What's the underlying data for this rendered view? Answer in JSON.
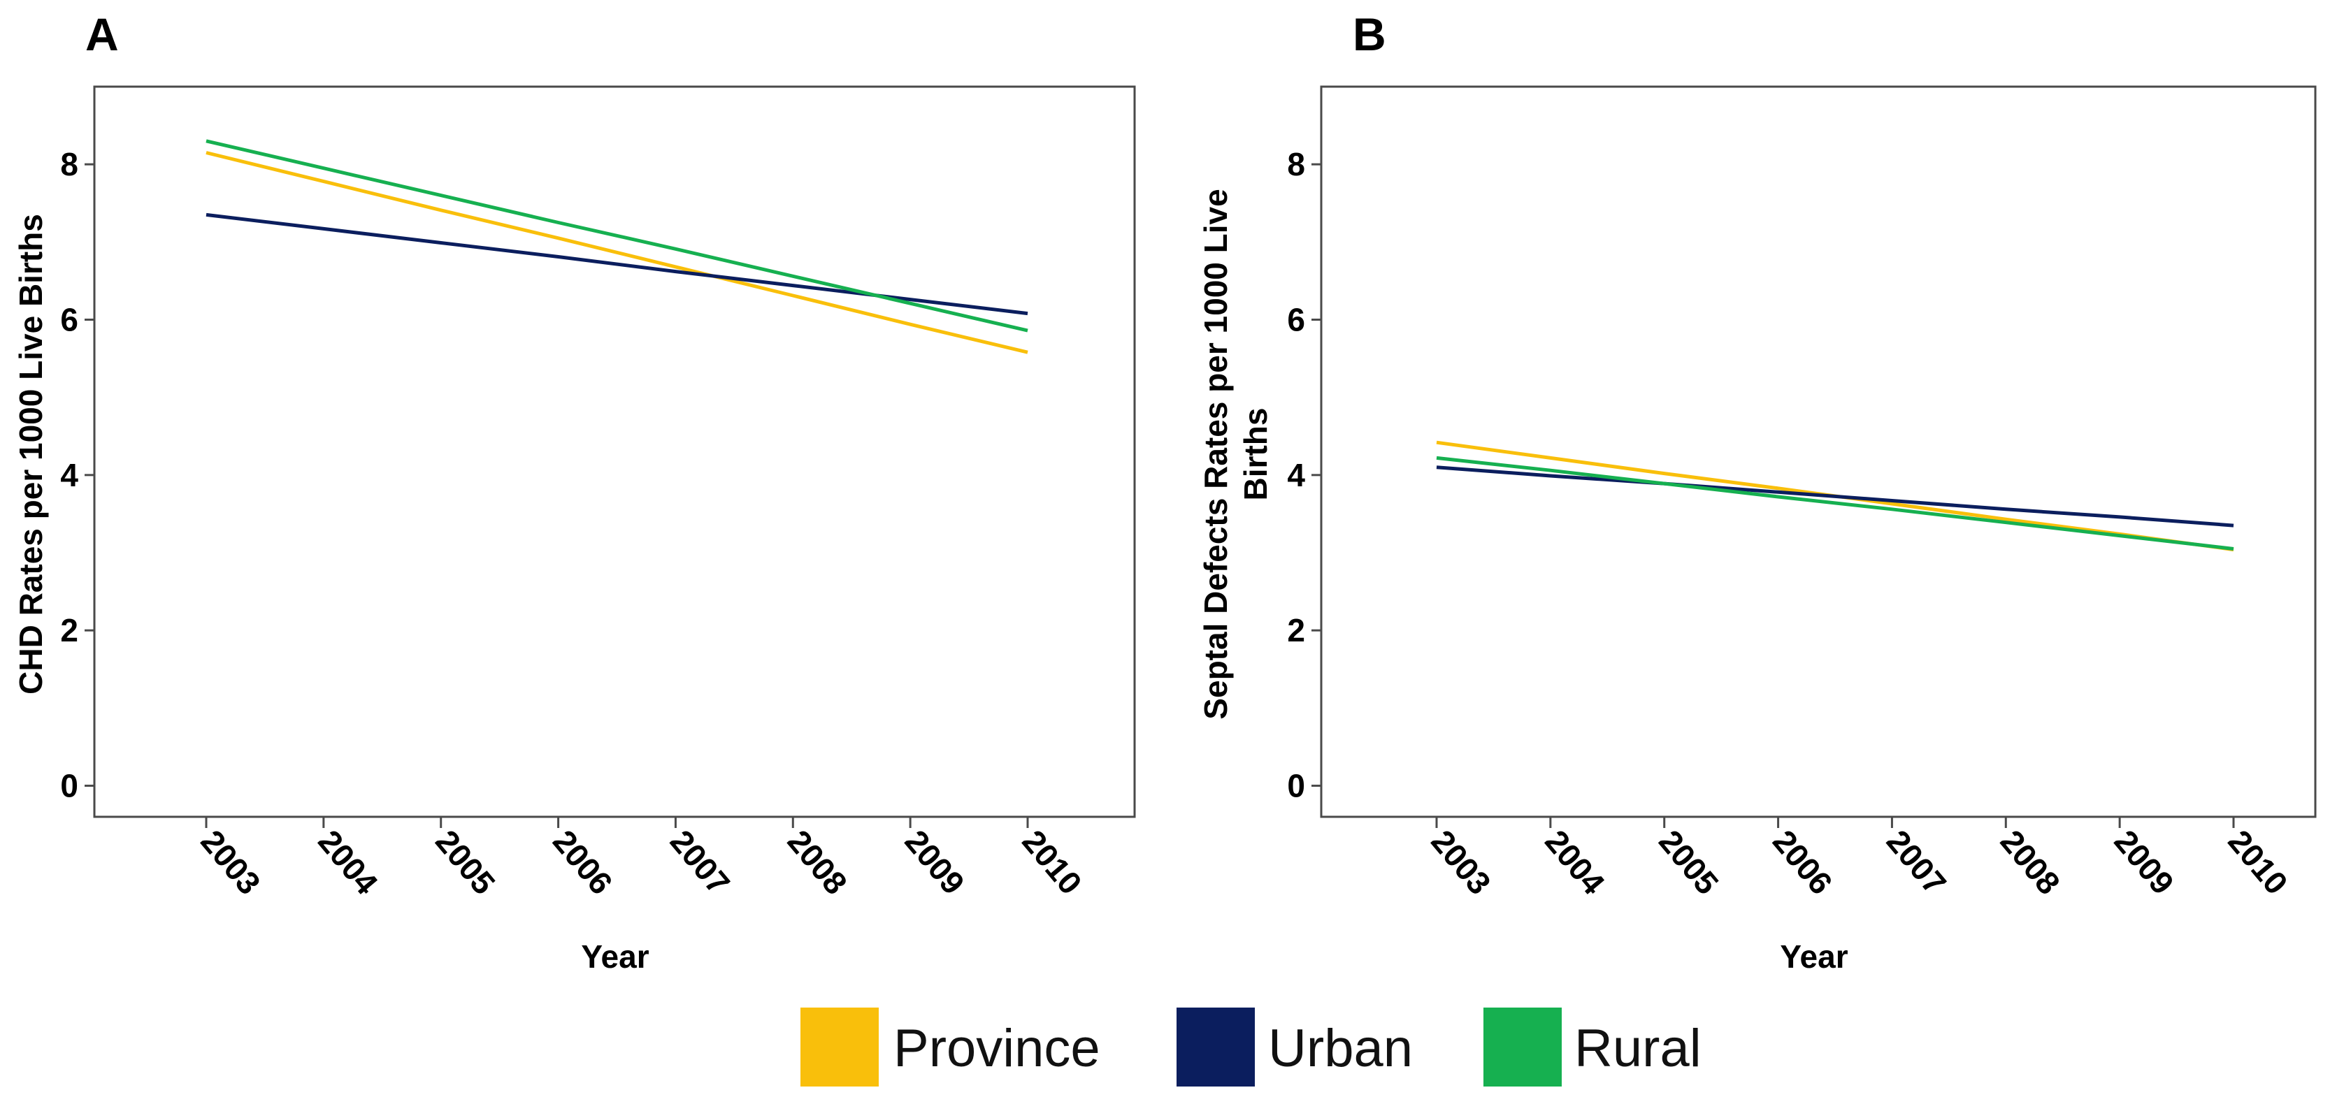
{
  "colors": {
    "province": "#F9BF0B",
    "urban": "#0B1E5E",
    "rural": "#16B050",
    "axis": "#4a4a4a"
  },
  "legend": {
    "items": [
      {
        "key": "province",
        "label": "Province"
      },
      {
        "key": "urban",
        "label": "Urban"
      },
      {
        "key": "rural",
        "label": "Rural"
      }
    ]
  },
  "chart_data": [
    {
      "type": "line",
      "panel": "A",
      "title": "",
      "xlabel": "Year",
      "ylabel": "CHD Rates per 1000 Live Births",
      "categories": [
        "2003",
        "2004",
        "2005",
        "2006",
        "2007",
        "2008",
        "2009",
        "2010"
      ],
      "ylim": [
        -0.4,
        9.0
      ],
      "yticks": [
        0,
        2,
        4,
        6,
        8
      ],
      "grid": false,
      "series": [
        {
          "name": "Province",
          "color_key": "province",
          "values": [
            8.15,
            7.78,
            7.41,
            7.05,
            6.68,
            6.31,
            5.94,
            5.58
          ]
        },
        {
          "name": "Urban",
          "color_key": "urban",
          "values": [
            7.35,
            7.17,
            6.99,
            6.81,
            6.62,
            6.44,
            6.26,
            6.08
          ]
        },
        {
          "name": "Rural",
          "color_key": "rural",
          "values": [
            8.3,
            7.95,
            7.6,
            7.25,
            6.91,
            6.56,
            6.21,
            5.86
          ]
        }
      ]
    },
    {
      "type": "line",
      "panel": "B",
      "title": "",
      "xlabel": "Year",
      "ylabel": "Septal Defects Rates per 1000 Live Births",
      "ylabel_lines": [
        "Septal Defects Rates per 1000 Live",
        "Births"
      ],
      "categories": [
        "2003",
        "2004",
        "2005",
        "2006",
        "2007",
        "2008",
        "2009",
        "2010"
      ],
      "ylim": [
        -0.4,
        9.0
      ],
      "yticks": [
        0,
        2,
        4,
        6,
        8
      ],
      "grid": false,
      "series": [
        {
          "name": "Province",
          "color_key": "province",
          "values": [
            4.42,
            4.22,
            4.02,
            3.83,
            3.63,
            3.43,
            3.24,
            3.04
          ]
        },
        {
          "name": "Urban",
          "color_key": "urban",
          "values": [
            4.1,
            3.99,
            3.89,
            3.78,
            3.67,
            3.56,
            3.46,
            3.35
          ]
        },
        {
          "name": "Rural",
          "color_key": "rural",
          "values": [
            4.22,
            4.06,
            3.89,
            3.72,
            3.56,
            3.39,
            3.22,
            3.05
          ]
        }
      ]
    }
  ]
}
